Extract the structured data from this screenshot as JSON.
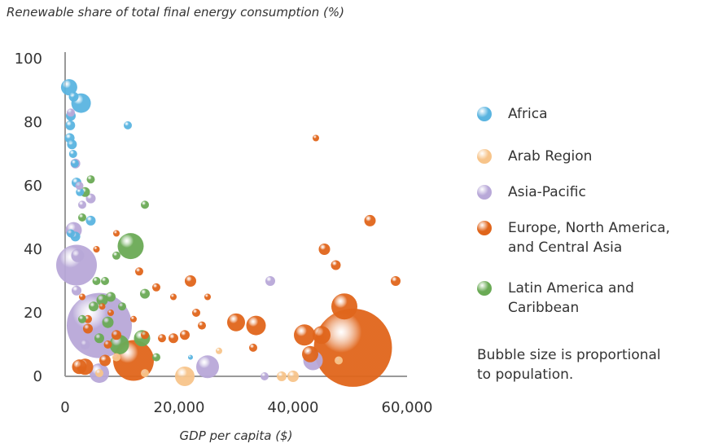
{
  "colors": {
    "africa": "#5ab4e0",
    "arab": "#f7c48a",
    "asia": "#b8a8d8",
    "europe": "#e0651b",
    "latam": "#6aaa55",
    "axis": "#999999",
    "text": "#333333"
  },
  "chart_data": {
    "type": "scatter",
    "title": "Renewable share of total final energy consumption (%)",
    "xlabel": "GDP per capita ($)",
    "ylabel": "",
    "xlim": [
      0,
      60000
    ],
    "ylim": [
      0,
      100
    ],
    "xticks": [
      "0",
      "20,000",
      "40,000",
      "60,000"
    ],
    "xtick_values": [
      0,
      20000,
      40000,
      60000
    ],
    "yticks": [
      "0",
      "20",
      "40",
      "60",
      "80",
      "100"
    ],
    "ytick_values": [
      0,
      20,
      40,
      60,
      80,
      100
    ],
    "legend": [
      {
        "key": "africa",
        "label": "Africa"
      },
      {
        "key": "arab",
        "label": "Arab Region"
      },
      {
        "key": "asia",
        "label": "Asia-Pacific"
      },
      {
        "key": "europe",
        "label": "Europe, North America,\nand Central Asia"
      },
      {
        "key": "latam",
        "label": "Latin America and\nCaribbean"
      }
    ],
    "note": "Bubble size is proportional\nto population.",
    "series": [
      {
        "key": "africa",
        "points": [
          [
            700,
            91,
            10
          ],
          [
            2800,
            86,
            12
          ],
          [
            1500,
            88,
            6
          ],
          [
            1000,
            82,
            6
          ],
          [
            900,
            79,
            6
          ],
          [
            800,
            75,
            6
          ],
          [
            1200,
            73,
            6
          ],
          [
            1400,
            70,
            5
          ],
          [
            1700,
            67,
            5
          ],
          [
            2000,
            61,
            6
          ],
          [
            11000,
            79,
            5
          ],
          [
            4500,
            49,
            6
          ],
          [
            2600,
            58,
            5
          ],
          [
            1800,
            44,
            6
          ],
          [
            1000,
            45,
            5
          ],
          [
            22000,
            6,
            3
          ]
        ]
      },
      {
        "key": "arab",
        "points": [
          [
            21000,
            0,
            12
          ],
          [
            14000,
            1,
            5
          ],
          [
            6000,
            1,
            5
          ],
          [
            38000,
            0,
            6
          ],
          [
            40000,
            0,
            7
          ],
          [
            48000,
            5,
            5
          ],
          [
            9000,
            6,
            5
          ],
          [
            27000,
            8,
            4
          ]
        ]
      },
      {
        "key": "asia",
        "points": [
          [
            6000,
            16,
            40
          ],
          [
            2000,
            35,
            25
          ],
          [
            1500,
            46,
            10
          ],
          [
            1800,
            67,
            6
          ],
          [
            2500,
            60,
            5
          ],
          [
            3000,
            54,
            5
          ],
          [
            4500,
            56,
            6
          ],
          [
            2000,
            27,
            6
          ],
          [
            3500,
            10,
            6
          ],
          [
            6000,
            1,
            12
          ],
          [
            25000,
            3,
            14
          ],
          [
            43500,
            5,
            12
          ],
          [
            36000,
            30,
            6
          ],
          [
            35000,
            0,
            5
          ],
          [
            1000,
            83,
            5
          ],
          [
            2200,
            38,
            8
          ]
        ]
      },
      {
        "key": "europe",
        "points": [
          [
            50500,
            9,
            48
          ],
          [
            12000,
            5,
            25
          ],
          [
            49000,
            22,
            16
          ],
          [
            42000,
            13,
            13
          ],
          [
            45000,
            13,
            11
          ],
          [
            43000,
            7,
            10
          ],
          [
            30000,
            17,
            11
          ],
          [
            33500,
            16,
            12
          ],
          [
            45500,
            40,
            7
          ],
          [
            47500,
            35,
            6
          ],
          [
            53500,
            49,
            7
          ],
          [
            58000,
            30,
            6
          ],
          [
            44000,
            75,
            4
          ],
          [
            22000,
            30,
            7
          ],
          [
            19000,
            12,
            6
          ],
          [
            21000,
            13,
            6
          ],
          [
            24000,
            16,
            5
          ],
          [
            23000,
            20,
            5
          ],
          [
            16000,
            28,
            5
          ],
          [
            17000,
            12,
            5
          ],
          [
            14000,
            13,
            5
          ],
          [
            13000,
            33,
            5
          ],
          [
            9000,
            13,
            6
          ],
          [
            7000,
            5,
            7
          ],
          [
            4000,
            15,
            6
          ],
          [
            2500,
            3,
            9
          ],
          [
            4000,
            18,
            5
          ],
          [
            5500,
            40,
            4
          ],
          [
            6500,
            22,
            4
          ],
          [
            8000,
            20,
            4
          ],
          [
            3000,
            25,
            4
          ],
          [
            9000,
            45,
            4
          ],
          [
            12000,
            18,
            4
          ],
          [
            19000,
            25,
            4
          ],
          [
            25000,
            25,
            4
          ],
          [
            33000,
            9,
            5
          ],
          [
            3500,
            3,
            10
          ],
          [
            7500,
            10,
            5
          ]
        ]
      },
      {
        "key": "latam",
        "points": [
          [
            11500,
            41,
            16
          ],
          [
            9500,
            10,
            12
          ],
          [
            13500,
            12,
            10
          ],
          [
            6500,
            24,
            7
          ],
          [
            5000,
            22,
            6
          ],
          [
            7500,
            17,
            7
          ],
          [
            8000,
            25,
            6
          ],
          [
            3000,
            50,
            5
          ],
          [
            3500,
            58,
            6
          ],
          [
            4500,
            62,
            5
          ],
          [
            14000,
            54,
            5
          ],
          [
            14000,
            26,
            6
          ],
          [
            6000,
            12,
            6
          ],
          [
            9000,
            38,
            5
          ],
          [
            3000,
            18,
            5
          ],
          [
            16000,
            6,
            5
          ],
          [
            7000,
            30,
            5
          ],
          [
            5500,
            30,
            5
          ],
          [
            10000,
            22,
            5
          ]
        ]
      }
    ]
  }
}
